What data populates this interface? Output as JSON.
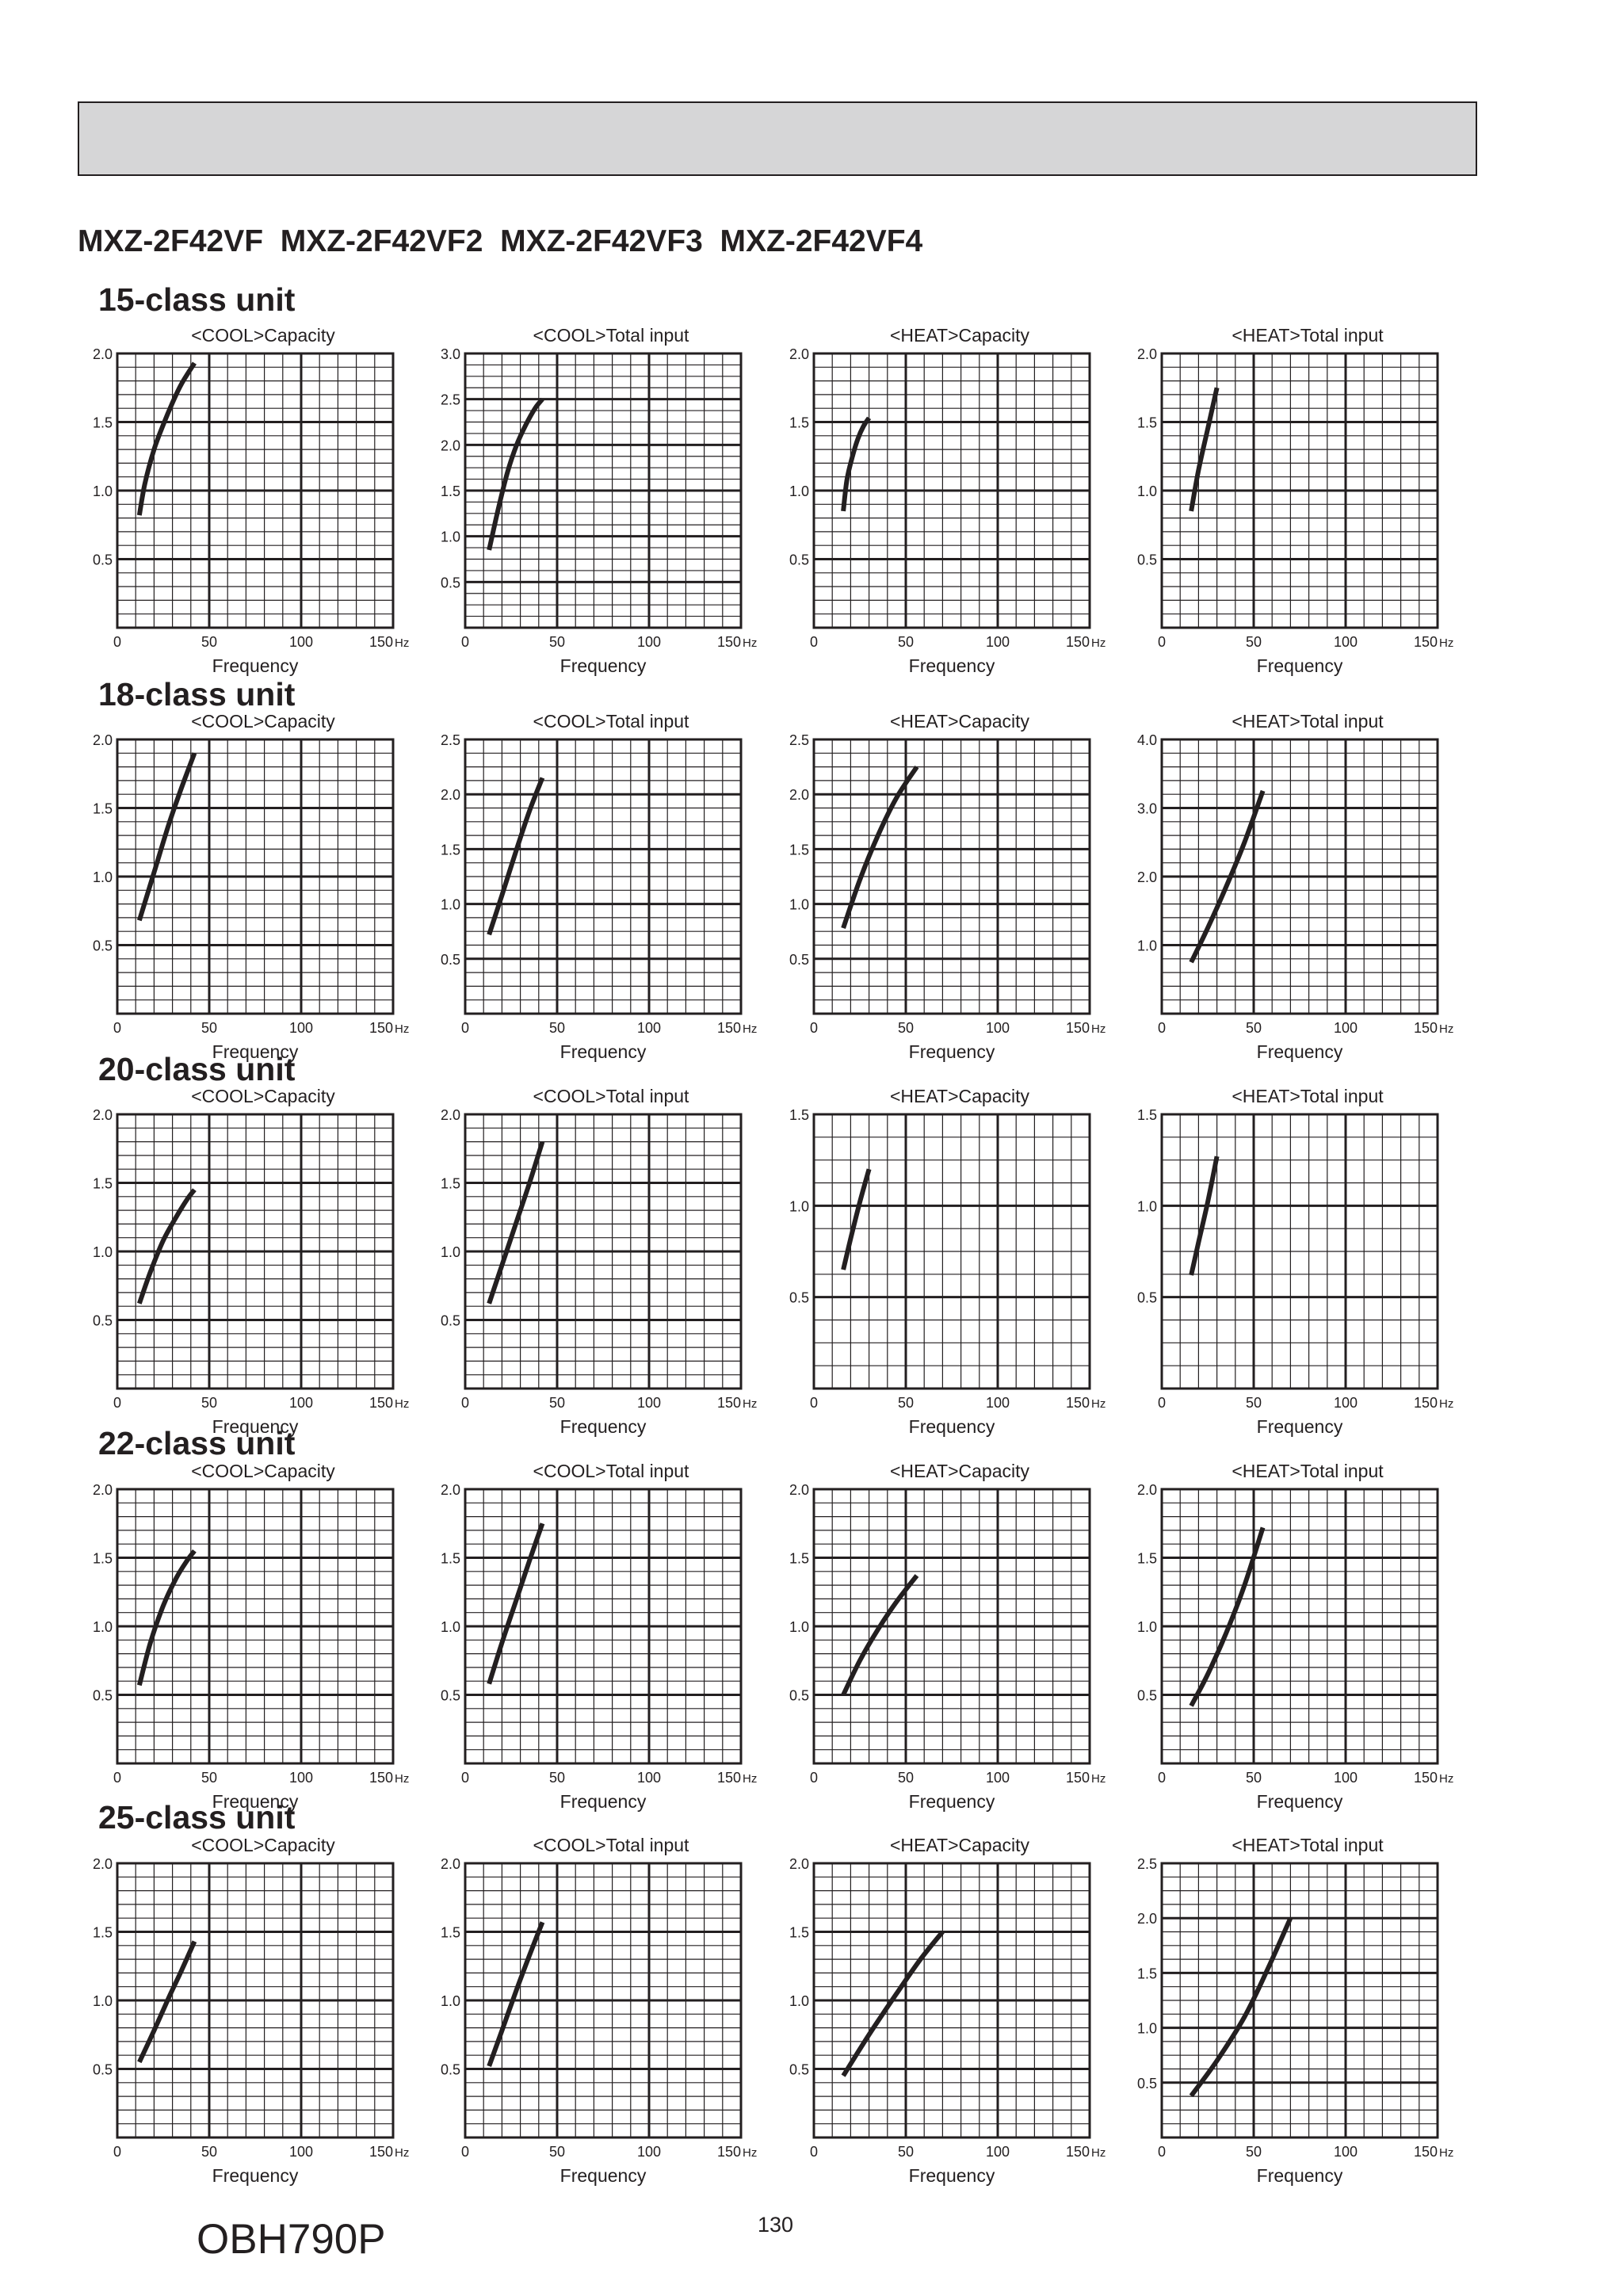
{
  "document": {
    "models": "MXZ-2F42VF  MXZ-2F42VF2  MXZ-2F42VF3  MXZ-2F42VF4",
    "code": "OBH790P",
    "page_number": "130"
  },
  "sections": [
    {
      "title": "15-class unit"
    },
    {
      "title": "18-class unit"
    },
    {
      "title": "20-class unit"
    },
    {
      "title": "22-class unit"
    },
    {
      "title": "25-class unit"
    }
  ],
  "colors": {
    "header_bar": "#d6d6d7",
    "ink": "#231f20",
    "curve": "#231f20"
  },
  "chart_data": [
    {
      "type": "line",
      "section": "15-class unit",
      "title": "<COOL>Capacity",
      "xlabel": "Frequency",
      "x_unit": "Hz",
      "xlim": [
        0,
        150
      ],
      "xticks": [
        "0",
        "50",
        "100",
        "150"
      ],
      "ylim": [
        0,
        2.0
      ],
      "yticks": [
        "0.5",
        "1.0",
        "1.5",
        "2.0"
      ],
      "grid": true,
      "series": [
        {
          "x": [
            12,
            15,
            20,
            25,
            30,
            35,
            42
          ],
          "y": [
            0.82,
            1.05,
            1.3,
            1.48,
            1.64,
            1.78,
            1.93
          ]
        }
      ]
    },
    {
      "type": "line",
      "section": "15-class unit",
      "title": "<COOL>Total input",
      "xlabel": "Frequency",
      "x_unit": "Hz",
      "xlim": [
        0,
        150
      ],
      "xticks": [
        "0",
        "50",
        "100",
        "150"
      ],
      "ylim": [
        0,
        3.0
      ],
      "yticks": [
        "0.5",
        "1.0",
        "1.5",
        "2.0",
        "2.5",
        "3.0"
      ],
      "grid": true,
      "series": [
        {
          "x": [
            13,
            18,
            23,
            28,
            33,
            38,
            42
          ],
          "y": [
            0.85,
            1.3,
            1.7,
            2.0,
            2.22,
            2.4,
            2.5
          ]
        }
      ]
    },
    {
      "type": "line",
      "section": "15-class unit",
      "title": "<HEAT>Capacity",
      "xlabel": "Frequency",
      "x_unit": "Hz",
      "xlim": [
        0,
        150
      ],
      "xticks": [
        "0",
        "50",
        "100",
        "150"
      ],
      "ylim": [
        0,
        2.0
      ],
      "yticks": [
        "0.5",
        "1.0",
        "1.5",
        "2.0"
      ],
      "grid": true,
      "series": [
        {
          "x": [
            16,
            18,
            21,
            24,
            27,
            30
          ],
          "y": [
            0.85,
            1.08,
            1.25,
            1.38,
            1.47,
            1.53
          ]
        }
      ]
    },
    {
      "type": "line",
      "section": "15-class unit",
      "title": "<HEAT>Total input",
      "xlabel": "Frequency",
      "x_unit": "Hz",
      "xlim": [
        0,
        150
      ],
      "xticks": [
        "0",
        "50",
        "100",
        "150"
      ],
      "ylim": [
        0,
        2.0
      ],
      "yticks": [
        "0.5",
        "1.0",
        "1.5",
        "2.0"
      ],
      "grid": true,
      "series": [
        {
          "x": [
            16,
            20,
            25,
            30
          ],
          "y": [
            0.85,
            1.15,
            1.45,
            1.75
          ]
        }
      ]
    },
    {
      "type": "line",
      "section": "18-class unit",
      "title": "<COOL>Capacity",
      "xlabel": "Frequency",
      "x_unit": "Hz",
      "xlim": [
        0,
        150
      ],
      "xticks": [
        "0",
        "50",
        "100",
        "150"
      ],
      "ylim": [
        0,
        2.0
      ],
      "yticks": [
        "0.5",
        "1.0",
        "1.5",
        "2.0"
      ],
      "grid": true,
      "series": [
        {
          "x": [
            12,
            20,
            28,
            35,
            42
          ],
          "y": [
            0.68,
            1.03,
            1.38,
            1.65,
            1.9
          ]
        }
      ]
    },
    {
      "type": "line",
      "section": "18-class unit",
      "title": "<COOL>Total input",
      "xlabel": "Frequency",
      "x_unit": "Hz",
      "xlim": [
        0,
        150
      ],
      "xticks": [
        "0",
        "50",
        "100",
        "150"
      ],
      "ylim": [
        0,
        2.5
      ],
      "yticks": [
        "0.5",
        "1.0",
        "1.5",
        "2.0",
        "2.5"
      ],
      "grid": true,
      "series": [
        {
          "x": [
            13,
            20,
            28,
            35,
            42
          ],
          "y": [
            0.72,
            1.08,
            1.5,
            1.85,
            2.15
          ]
        }
      ]
    },
    {
      "type": "line",
      "section": "18-class unit",
      "title": "<HEAT>Capacity",
      "xlabel": "Frequency",
      "x_unit": "Hz",
      "xlim": [
        0,
        150
      ],
      "xticks": [
        "0",
        "50",
        "100",
        "150"
      ],
      "ylim": [
        0,
        2.5
      ],
      "yticks": [
        "0.5",
        "1.0",
        "1.5",
        "2.0",
        "2.5"
      ],
      "grid": true,
      "series": [
        {
          "x": [
            16,
            25,
            35,
            45,
            56
          ],
          "y": [
            0.78,
            1.22,
            1.63,
            1.97,
            2.25
          ]
        }
      ]
    },
    {
      "type": "line",
      "section": "18-class unit",
      "title": "<HEAT>Total input",
      "xlabel": "Frequency",
      "x_unit": "Hz",
      "xlim": [
        0,
        150
      ],
      "xticks": [
        "0",
        "50",
        "100",
        "150"
      ],
      "ylim": [
        0,
        4.0
      ],
      "yticks": [
        "1.0",
        "2.0",
        "3.0",
        "4.0"
      ],
      "grid": true,
      "series": [
        {
          "x": [
            16,
            25,
            35,
            45,
            55
          ],
          "y": [
            0.75,
            1.25,
            1.85,
            2.5,
            3.25
          ]
        }
      ]
    },
    {
      "type": "line",
      "section": "20-class unit",
      "title": "<COOL>Capacity",
      "xlabel": "Frequency",
      "x_unit": "Hz",
      "xlim": [
        0,
        150
      ],
      "xticks": [
        "0",
        "50",
        "100",
        "150"
      ],
      "ylim": [
        0,
        2.0
      ],
      "yticks": [
        "0.5",
        "1.0",
        "1.5",
        "2.0"
      ],
      "grid": true,
      "series": [
        {
          "x": [
            12,
            18,
            25,
            32,
            38,
            42
          ],
          "y": [
            0.62,
            0.85,
            1.08,
            1.25,
            1.38,
            1.45
          ]
        }
      ]
    },
    {
      "type": "line",
      "section": "20-class unit",
      "title": "<COOL>Total input",
      "xlabel": "Frequency",
      "x_unit": "Hz",
      "xlim": [
        0,
        150
      ],
      "xticks": [
        "0",
        "50",
        "100",
        "150"
      ],
      "ylim": [
        0,
        2.0
      ],
      "yticks": [
        "0.5",
        "1.0",
        "1.5",
        "2.0"
      ],
      "grid": true,
      "series": [
        {
          "x": [
            13,
            20,
            28,
            35,
            42
          ],
          "y": [
            0.62,
            0.9,
            1.22,
            1.5,
            1.8
          ]
        }
      ]
    },
    {
      "type": "line",
      "section": "20-class unit",
      "title": "<HEAT>Capacity",
      "xlabel": "Frequency",
      "x_unit": "Hz",
      "xlim": [
        0,
        150
      ],
      "xticks": [
        "0",
        "50",
        "100",
        "150"
      ],
      "ylim": [
        0,
        1.5
      ],
      "yticks": [
        "0.5",
        "1.0",
        "1.5"
      ],
      "grid": true,
      "series": [
        {
          "x": [
            16,
            20,
            25,
            30
          ],
          "y": [
            0.65,
            0.82,
            1.02,
            1.2
          ]
        }
      ]
    },
    {
      "type": "line",
      "section": "20-class unit",
      "title": "<HEAT>Total input",
      "xlabel": "Frequency",
      "x_unit": "Hz",
      "xlim": [
        0,
        150
      ],
      "xticks": [
        "0",
        "50",
        "100",
        "150"
      ],
      "ylim": [
        0,
        1.5
      ],
      "yticks": [
        "0.5",
        "1.0",
        "1.5"
      ],
      "grid": true,
      "series": [
        {
          "x": [
            16,
            20,
            25,
            30
          ],
          "y": [
            0.62,
            0.8,
            1.02,
            1.27
          ]
        }
      ]
    },
    {
      "type": "line",
      "section": "22-class unit",
      "title": "<COOL>Capacity",
      "xlabel": "Frequency",
      "x_unit": "Hz",
      "xlim": [
        0,
        150
      ],
      "xticks": [
        "0",
        "50",
        "100",
        "150"
      ],
      "ylim": [
        0,
        2.0
      ],
      "yticks": [
        "0.5",
        "1.0",
        "1.5",
        "2.0"
      ],
      "grid": true,
      "series": [
        {
          "x": [
            12,
            18,
            25,
            32,
            38,
            42
          ],
          "y": [
            0.57,
            0.88,
            1.15,
            1.35,
            1.48,
            1.55
          ]
        }
      ]
    },
    {
      "type": "line",
      "section": "22-class unit",
      "title": "<COOL>Total input",
      "xlabel": "Frequency",
      "x_unit": "Hz",
      "xlim": [
        0,
        150
      ],
      "xticks": [
        "0",
        "50",
        "100",
        "150"
      ],
      "ylim": [
        0,
        2.0
      ],
      "yticks": [
        "0.5",
        "1.0",
        "1.5",
        "2.0"
      ],
      "grid": true,
      "series": [
        {
          "x": [
            13,
            20,
            28,
            35,
            42
          ],
          "y": [
            0.58,
            0.88,
            1.2,
            1.48,
            1.75
          ]
        }
      ]
    },
    {
      "type": "line",
      "section": "22-class unit",
      "title": "<HEAT>Capacity",
      "xlabel": "Frequency",
      "x_unit": "Hz",
      "xlim": [
        0,
        150
      ],
      "xticks": [
        "0",
        "50",
        "100",
        "150"
      ],
      "ylim": [
        0,
        2.0
      ],
      "yticks": [
        "0.5",
        "1.0",
        "1.5",
        "2.0"
      ],
      "grid": true,
      "series": [
        {
          "x": [
            16,
            25,
            35,
            45,
            56
          ],
          "y": [
            0.5,
            0.75,
            0.98,
            1.18,
            1.37
          ]
        }
      ]
    },
    {
      "type": "line",
      "section": "22-class unit",
      "title": "<HEAT>Total input",
      "xlabel": "Frequency",
      "x_unit": "Hz",
      "xlim": [
        0,
        150
      ],
      "xticks": [
        "0",
        "50",
        "100",
        "150"
      ],
      "ylim": [
        0,
        2.0
      ],
      "yticks": [
        "0.5",
        "1.0",
        "1.5",
        "2.0"
      ],
      "grid": true,
      "series": [
        {
          "x": [
            16,
            25,
            35,
            45,
            55
          ],
          "y": [
            0.42,
            0.65,
            0.95,
            1.3,
            1.72
          ]
        }
      ]
    },
    {
      "type": "line",
      "section": "25-class unit",
      "title": "<COOL>Capacity",
      "xlabel": "Frequency",
      "x_unit": "Hz",
      "xlim": [
        0,
        150
      ],
      "xticks": [
        "0",
        "50",
        "100",
        "150"
      ],
      "ylim": [
        0,
        2.0
      ],
      "yticks": [
        "0.5",
        "1.0",
        "1.5",
        "2.0"
      ],
      "grid": true,
      "series": [
        {
          "x": [
            12,
            20,
            28,
            35,
            42
          ],
          "y": [
            0.55,
            0.78,
            1.02,
            1.22,
            1.43
          ]
        }
      ]
    },
    {
      "type": "line",
      "section": "25-class unit",
      "title": "<COOL>Total input",
      "xlabel": "Frequency",
      "x_unit": "Hz",
      "xlim": [
        0,
        150
      ],
      "xticks": [
        "0",
        "50",
        "100",
        "150"
      ],
      "ylim": [
        0,
        2.0
      ],
      "yticks": [
        "0.5",
        "1.0",
        "1.5",
        "2.0"
      ],
      "grid": true,
      "series": [
        {
          "x": [
            13,
            20,
            28,
            35,
            42
          ],
          "y": [
            0.52,
            0.78,
            1.08,
            1.33,
            1.57
          ]
        }
      ]
    },
    {
      "type": "line",
      "section": "25-class unit",
      "title": "<HEAT>Capacity",
      "xlabel": "Frequency",
      "x_unit": "Hz",
      "xlim": [
        0,
        150
      ],
      "xticks": [
        "0",
        "50",
        "100",
        "150"
      ],
      "ylim": [
        0,
        2.0
      ],
      "yticks": [
        "0.5",
        "1.0",
        "1.5",
        "2.0"
      ],
      "grid": true,
      "series": [
        {
          "x": [
            16,
            30,
            45,
            58,
            70
          ],
          "y": [
            0.45,
            0.75,
            1.05,
            1.3,
            1.5
          ]
        }
      ]
    },
    {
      "type": "line",
      "section": "25-class unit",
      "title": "<HEAT>Total input",
      "xlabel": "Frequency",
      "x_unit": "Hz",
      "xlim": [
        0,
        150
      ],
      "xticks": [
        "0",
        "50",
        "100",
        "150"
      ],
      "ylim": [
        0,
        2.5
      ],
      "yticks": [
        "0.5",
        "1.0",
        "1.5",
        "2.0",
        "2.5"
      ],
      "grid": true,
      "series": [
        {
          "x": [
            16,
            30,
            45,
            58,
            70
          ],
          "y": [
            0.38,
            0.7,
            1.1,
            1.55,
            2.0
          ]
        }
      ]
    }
  ]
}
